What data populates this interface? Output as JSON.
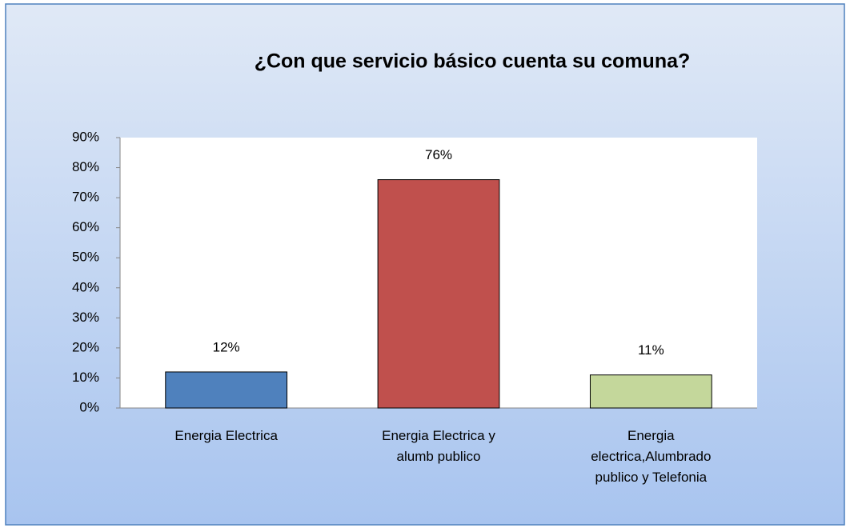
{
  "chart_data": {
    "type": "bar",
    "title": "¿Con que servicio básico cuenta su comuna?",
    "categories": [
      "Energia Electrica",
      "Energia Electrica y alumb publico",
      "Energia electrica,Alumbrado publico y Telefonia"
    ],
    "values": [
      12,
      76,
      11
    ],
    "value_labels": [
      "12%",
      "76%",
      "11%"
    ],
    "colors": [
      "#4f81bd",
      "#c0504d",
      "#c4d79b"
    ],
    "ylim": [
      0,
      90
    ],
    "yticks": [
      {
        "value": 0,
        "label": "0%"
      },
      {
        "value": 10,
        "label": "10%"
      },
      {
        "value": 20,
        "label": "20%"
      },
      {
        "value": 30,
        "label": "30%"
      },
      {
        "value": 40,
        "label": "40%"
      },
      {
        "value": 50,
        "label": "50%"
      },
      {
        "value": 60,
        "label": "60%"
      },
      {
        "value": 70,
        "label": "70%"
      },
      {
        "value": 80,
        "label": "80%"
      },
      {
        "value": 90,
        "label": "90%"
      }
    ],
    "grid": false
  }
}
